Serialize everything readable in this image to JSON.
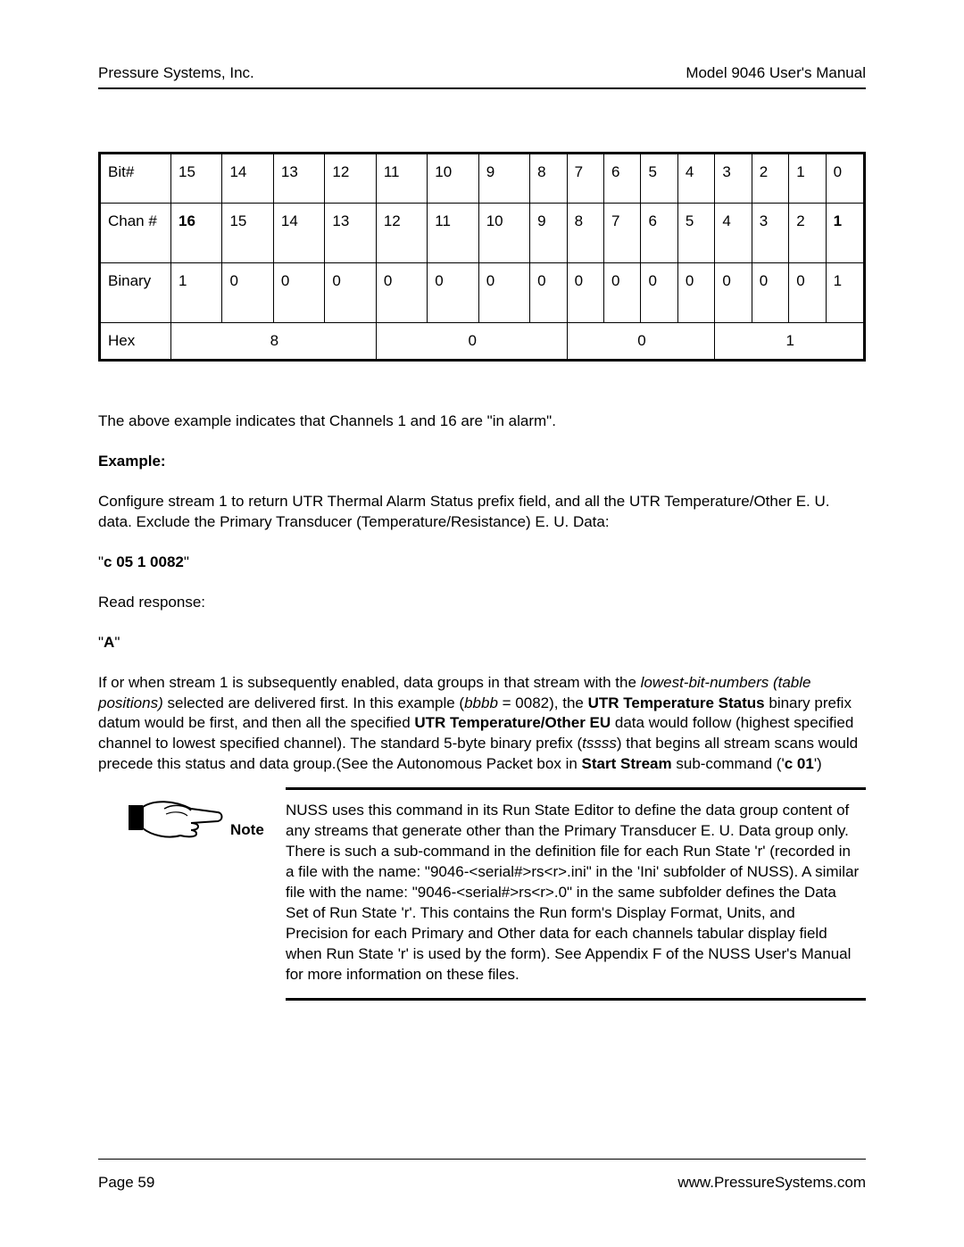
{
  "header": {
    "left": "Pressure Systems, Inc.",
    "right": "Model 9046 User's Manual"
  },
  "footer": {
    "left": "Page 59",
    "right": "www.PressureSystems.com"
  },
  "table": {
    "rows": {
      "bit": {
        "label": "Bit#",
        "cells": [
          "15",
          "14",
          "13",
          "12",
          "11",
          "10",
          "9",
          "8",
          "7",
          "6",
          "5",
          "4",
          "3",
          "2",
          "1",
          "0"
        ],
        "bold_idx": []
      },
      "chan": {
        "label": "Chan #",
        "cells": [
          "16",
          "15",
          "14",
          "13",
          "12",
          "11",
          "10",
          "9",
          "8",
          "7",
          "6",
          "5",
          "4",
          "3",
          "2",
          "1"
        ],
        "bold_idx": [
          0,
          15
        ]
      },
      "bin": {
        "label": "Binary",
        "cells": [
          "1",
          "0",
          "0",
          "0",
          "0",
          "0",
          "0",
          "0",
          "0",
          "0",
          "0",
          "0",
          "0",
          "0",
          "0",
          "1"
        ],
        "bold_idx": []
      },
      "hex": {
        "label": "Hex",
        "cells": [
          "8",
          "0",
          "0",
          "1"
        ],
        "span": 4
      }
    }
  },
  "body": {
    "p1": "The above example indicates that Channels 1 and 16 are \"in alarm\".",
    "example_label": "Example:",
    "p2": "Configure stream 1 to return UTR Thermal Alarm Status prefix field, and all the UTR Temperature/Other E. U. data.  Exclude the Primary Transducer (Temperature/Resistance) E. U. Data:",
    "cmd": "c 05 1 0082",
    "p3": "Read response:",
    "resp": "A",
    "p4_parts": [
      {
        "t": "If or when stream 1 is subsequently enabled, data groups in that stream with the "
      },
      {
        "t": "lowest-bit-numbers (table positions)",
        "i": true
      },
      {
        "t": " selected are delivered first.  In this example ("
      },
      {
        "t": "bbbb",
        "i": true
      },
      {
        "t": " = 0082), the "
      },
      {
        "t": "UTR Temperature Status",
        "b": true
      },
      {
        "t": " binary prefix datum would be first, and then all the specified "
      },
      {
        "t": "UTR Temperature/Other EU",
        "b": true
      },
      {
        "t": " data would follow (highest specified channel to lowest specified channel).  The standard 5-byte binary prefix ("
      },
      {
        "t": "tssss",
        "i": true
      },
      {
        "t": ") that begins all stream scans would precede this status and data group.(See the Autonomous Packet box in "
      },
      {
        "t": "Start Stream",
        "b": true
      },
      {
        "t": " sub-command ('"
      },
      {
        "t": "c 01",
        "b": true
      },
      {
        "t": "')"
      }
    ]
  },
  "note": {
    "label": "Note",
    "text": "NUSS uses this command in its Run State Editor to define the data group content of any streams that generate other than the Primary Transducer E. U. Data group only. There is such a sub-command in the definition file for each Run State 'r' (recorded in a file with the name:  \"9046-<serial#>rs<r>.ini\" in the 'Ini' subfolder of NUSS). A similar file with the name: \"9046-<serial#>rs<r>.0\" in the same subfolder defines the Data Set of Run State 'r'. This contains the Run form's Display Format, Units, and Precision for each Primary and Other data for each channels tabular display field when Run State 'r' is used by the form). See Appendix F of the NUSS User's Manual for more information on these files."
  }
}
